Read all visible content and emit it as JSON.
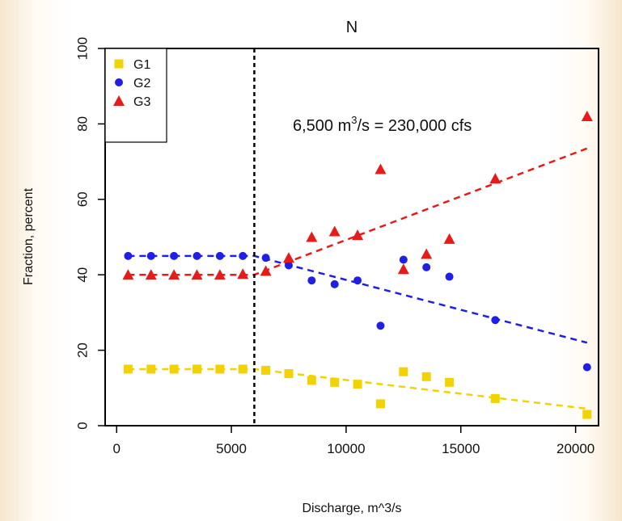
{
  "chart_data": {
    "type": "scatter",
    "title": "N",
    "xlabel": "Discharge, m^3/s",
    "ylabel": "Fraction, percent",
    "xlim": [
      -500,
      21000
    ],
    "ylim": [
      0,
      100
    ],
    "x_ticks": [
      0,
      5000,
      10000,
      15000,
      20000
    ],
    "y_ticks": [
      0,
      20,
      40,
      60,
      80,
      100
    ],
    "grid": false,
    "legend_position": "top-left",
    "annotation": {
      "pre": "6,500 m",
      "sup": "3",
      "post": "/s = 230,000 cfs"
    },
    "vline": {
      "x": 6000,
      "style": "dotted",
      "color": "#000000"
    },
    "x": [
      500,
      1500,
      2500,
      3500,
      4500,
      5500,
      6500,
      7500,
      8500,
      9500,
      10500,
      11500,
      12500,
      13500,
      14500,
      16500,
      20500
    ],
    "series": [
      {
        "name": "G1",
        "marker": "square",
        "color": "#f2d200",
        "values": [
          15,
          15,
          15,
          15,
          15,
          15,
          14.7,
          13.8,
          12,
          11.5,
          11,
          5.8,
          14.3,
          13,
          11.5,
          7.2,
          3
        ],
        "trend": [
          [
            500,
            15
          ],
          [
            6000,
            15
          ],
          [
            20500,
            4.5
          ]
        ]
      },
      {
        "name": "G2",
        "marker": "circle",
        "color": "#1f1fe6",
        "values": [
          45,
          45,
          45,
          45,
          45,
          45,
          44.5,
          42.5,
          38.5,
          37.5,
          38.5,
          26.5,
          44,
          42,
          39.5,
          28,
          15.5
        ],
        "trend": [
          [
            500,
            45
          ],
          [
            6000,
            45
          ],
          [
            20500,
            22
          ]
        ]
      },
      {
        "name": "G3",
        "marker": "triangle",
        "color": "#e81a1a",
        "values": [
          40,
          40,
          40,
          40,
          40,
          40.2,
          41,
          44.5,
          50,
          51.5,
          50.5,
          68,
          41.5,
          45.5,
          49.5,
          65.5,
          82
        ],
        "trend": [
          [
            500,
            40
          ],
          [
            6000,
            40
          ],
          [
            20500,
            73.5
          ]
        ]
      }
    ]
  }
}
